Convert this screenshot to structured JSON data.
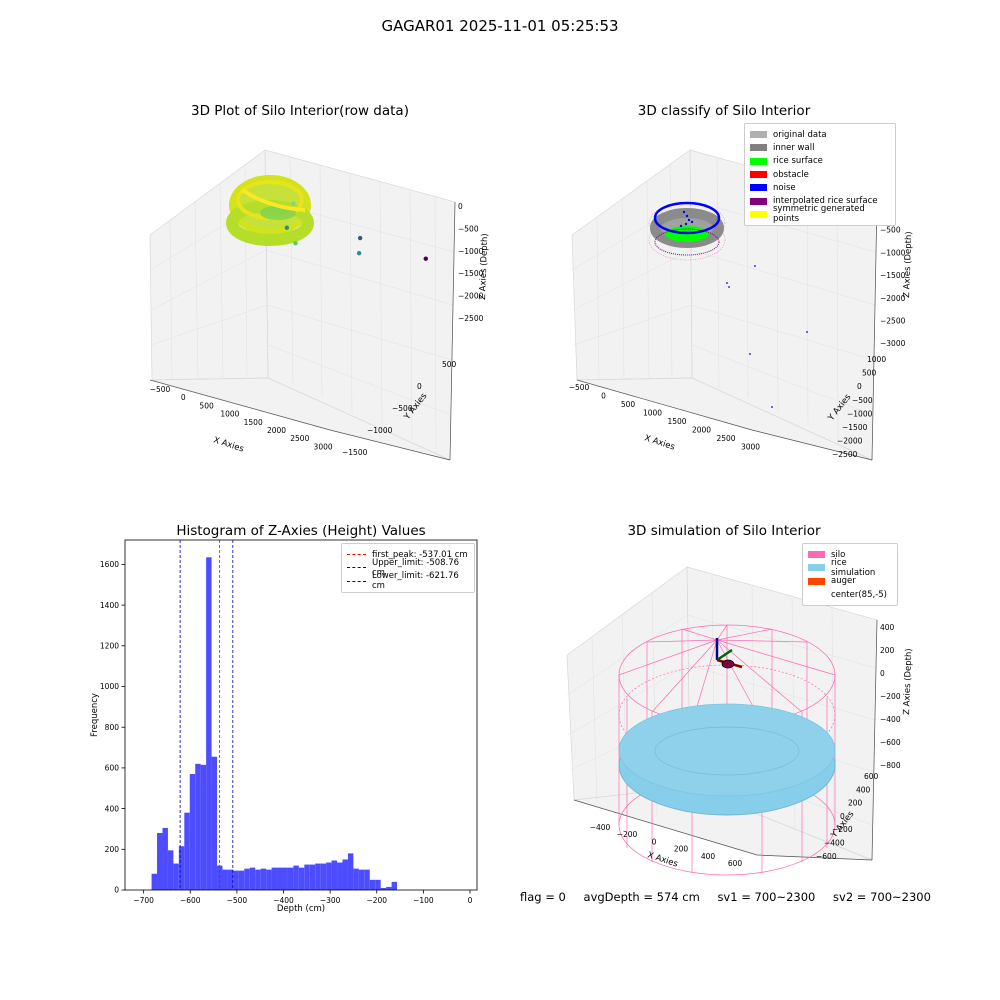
{
  "suptitle": "GAGAR01 2025-11-01 05:25:53",
  "colors": {
    "histogram_bar": "#4d4dff",
    "first_peak_line": "#ff0000",
    "limit_lines": "#0000cc",
    "silo": "#ff69b4",
    "rice_simulation": "#87ceeb",
    "auger": "#ff4500"
  },
  "chart_data": [
    {
      "type": "scatter",
      "title": "3D Plot of Silo Interior(row data)",
      "projection": "3d",
      "xlabel": "X Axies",
      "ylabel": "Y Axies",
      "zlabel": "Z Axies (Depth)",
      "x_ticks": [
        "−500",
        "0",
        "500",
        "1000",
        "1500",
        "2000",
        "2500",
        "3000"
      ],
      "y_ticks": [
        "500",
        "0",
        "−500",
        "−1000",
        "−1500",
        "−2000"
      ],
      "z_ticks": [
        "0",
        "−500",
        "−1000",
        "−1500",
        "−2000",
        "−2500"
      ],
      "xlim": [
        -600,
        3300
      ],
      "ylim": [
        -2000,
        700
      ],
      "zlim": [
        -2900,
        100
      ],
      "colormap": "viridis",
      "ring_depth_range": [
        -620,
        -450
      ],
      "outliers": [
        {
          "x": 200,
          "y": -100,
          "z": -900
        },
        {
          "x": 250,
          "y": 0,
          "z": -1350
        },
        {
          "x": 50,
          "y": -300,
          "z": -1450
        },
        {
          "x": 1600,
          "y": -700,
          "z": -1900
        },
        {
          "x": 1600,
          "y": -1250,
          "z": -2200
        },
        {
          "x": 3000,
          "y": -1800,
          "z": -2750
        }
      ]
    },
    {
      "type": "scatter",
      "title": "3D classify of Silo Interior",
      "projection": "3d",
      "xlabel": "X Axies",
      "ylabel": "Y Axies",
      "zlabel": "Z Axies (Depth)",
      "x_ticks": [
        "−500",
        "0",
        "500",
        "1000",
        "1500",
        "2000",
        "2500",
        "3000"
      ],
      "y_ticks": [
        "1000",
        "500",
        "0",
        "−500",
        "−1000",
        "−1500",
        "−2000",
        "−2500"
      ],
      "z_ticks": [
        "0",
        "−500",
        "−1000",
        "−1500",
        "−2000",
        "−2500",
        "−3000"
      ],
      "legend": [
        "original data",
        "inner wall",
        "rice surface",
        "obstacle",
        "noise",
        "interpolated rice surface",
        "symmetric generated points"
      ],
      "legend_colors": [
        "#b0b0b0",
        "#808080",
        "#00ff00",
        "#ff0000",
        "#0000ff",
        "#800080",
        "#ffff00"
      ]
    },
    {
      "type": "bar",
      "title": "Histogram of Z-Axies (Height) Values",
      "xlabel": "Depth (cm)",
      "ylabel": "Frequency",
      "xlim": [
        -740,
        15
      ],
      "ylim": [
        0,
        1720
      ],
      "x_ticks": [
        "−700",
        "−600",
        "−500",
        "−400",
        "−300",
        "−200",
        "−100",
        "0"
      ],
      "y_ticks": [
        "0",
        "200",
        "400",
        "600",
        "800",
        "1000",
        "1200",
        "1400",
        "1600"
      ],
      "bin_start": -683,
      "bin_width": 11.7,
      "values": [
        80,
        280,
        305,
        195,
        130,
        215,
        380,
        570,
        620,
        615,
        1635,
        655,
        120,
        100,
        100,
        95,
        95,
        105,
        110,
        100,
        105,
        100,
        110,
        110,
        110,
        110,
        120,
        110,
        125,
        125,
        130,
        130,
        135,
        145,
        135,
        150,
        180,
        105,
        100,
        100,
        50,
        50,
        10,
        15,
        40
      ],
      "vlines": [
        {
          "label": "first_peak: -537.01 cm",
          "x": -537.01,
          "color": "#ff0000"
        },
        {
          "label": "Upper_limit: -508.76 cm",
          "x": -508.76,
          "color": "#0000cc"
        },
        {
          "label": "Lower_limit: -621.76 cm",
          "x": -621.76,
          "color": "#0000cc"
        }
      ]
    },
    {
      "type": "scatter",
      "title": "3D simulation of Silo Interior",
      "projection": "3d",
      "xlabel": "X Axies",
      "ylabel": "Y Axies",
      "zlabel": "Z Axies (Depth)",
      "x_ticks": [
        "−400",
        "−200",
        "0",
        "200",
        "400",
        "600"
      ],
      "y_ticks": [
        "600",
        "400",
        "200",
        "0",
        "−200",
        "−400",
        "−600"
      ],
      "z_ticks": [
        "400",
        "200",
        "0",
        "−200",
        "−400",
        "−600",
        "−800"
      ],
      "legend": [
        "silo",
        "rice simulation",
        "auger",
        "center(85,-5)"
      ],
      "legend_colors": [
        "#ff69b4",
        "#87ceeb",
        "#ff4500",
        ""
      ]
    }
  ],
  "footer": {
    "flag": "flag = 0",
    "avg_depth": "avgDepth = 574 cm",
    "sv1": "sv1 = 700~2300",
    "sv2": "sv2 = 700~2300"
  }
}
